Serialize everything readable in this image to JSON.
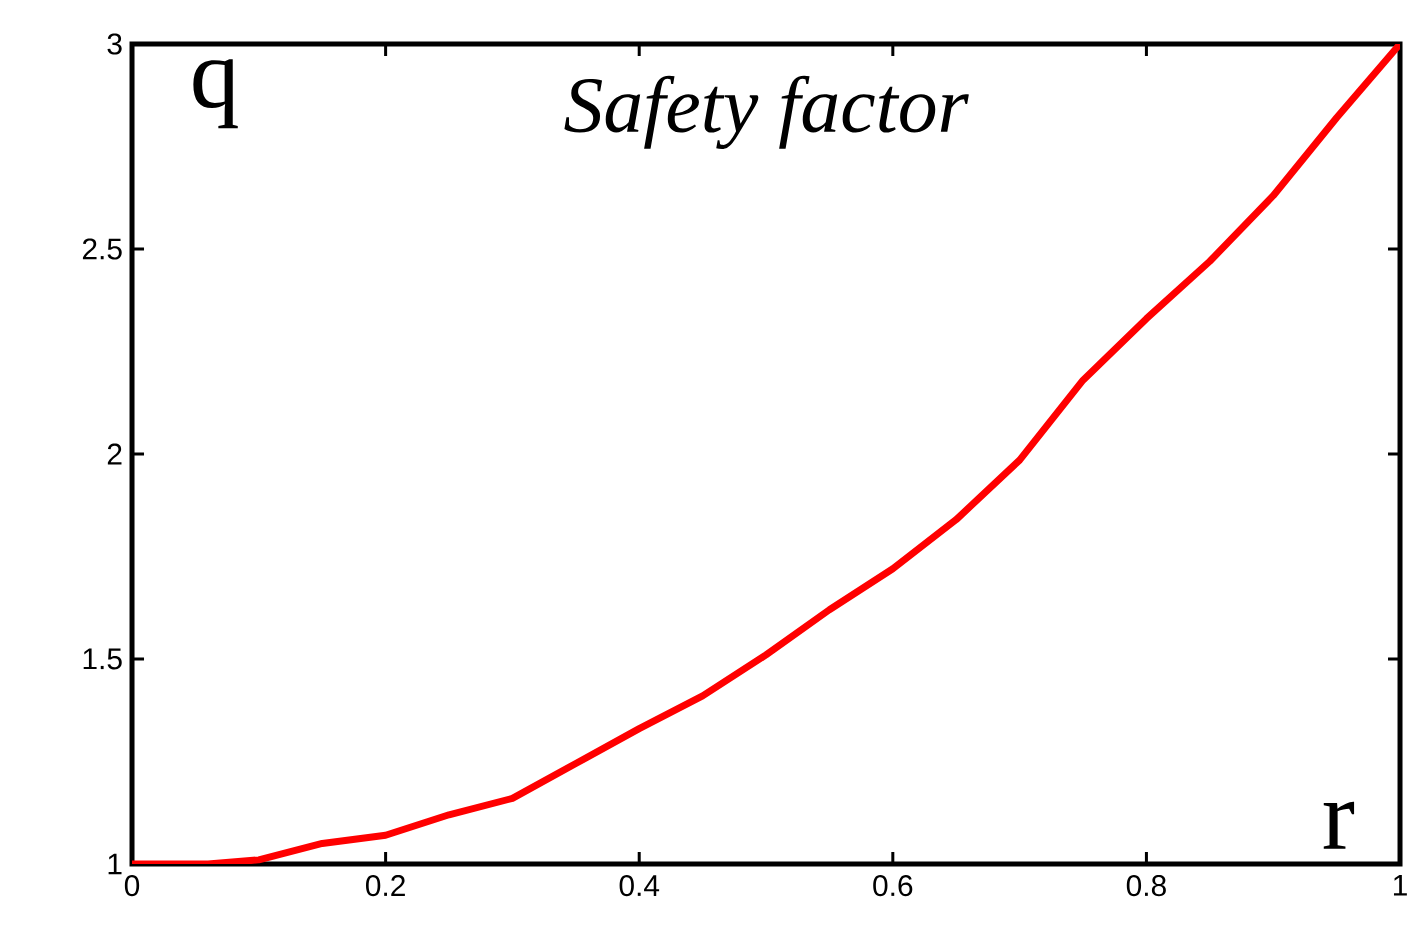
{
  "chart_data": {
    "type": "line",
    "title": "Safety factor",
    "xlabel": "r",
    "ylabel": "q",
    "x": [
      0,
      0.06,
      0.1,
      0.15,
      0.2,
      0.25,
      0.3,
      0.35,
      0.4,
      0.45,
      0.5,
      0.55,
      0.6,
      0.65,
      0.7,
      0.75,
      0.8,
      0.85,
      0.9,
      0.95,
      1
    ],
    "series": [
      {
        "color": "#ff0000",
        "values": [
          1.0,
          1.0,
          1.01,
          1.05,
          1.07,
          1.12,
          1.16,
          1.245,
          1.33,
          1.41,
          1.51,
          1.62,
          1.72,
          1.84,
          1.985,
          2.18,
          2.33,
          2.47,
          2.63,
          2.82,
          3.0
        ]
      }
    ],
    "xlim": [
      0,
      1
    ],
    "ylim": [
      1,
      3
    ],
    "xticks": [
      0,
      0.2,
      0.4,
      0.6,
      0.8,
      1
    ],
    "yticks": [
      1,
      1.5,
      2,
      2.5,
      3
    ],
    "grid": false,
    "marker": "none",
    "line_style": "solid"
  }
}
